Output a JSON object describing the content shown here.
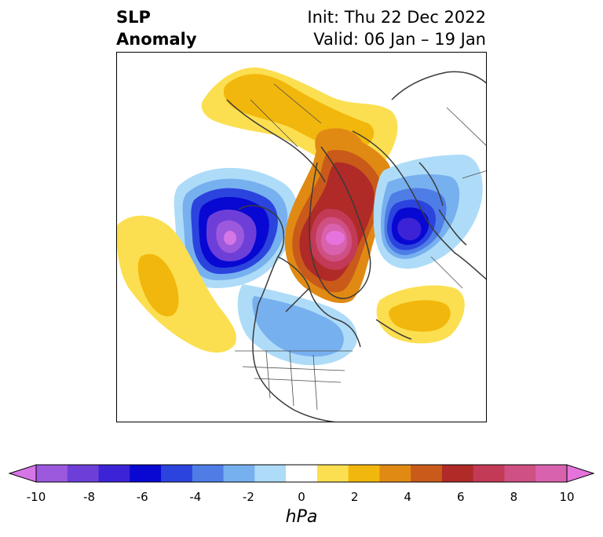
{
  "header": {
    "title_line1": "SLP",
    "title_line2": "Anomaly",
    "init": "Init: Thu 22 Dec 2022",
    "valid": "Valid: 06 Jan – 19 Jan"
  },
  "colorbar": {
    "units": "hPa",
    "ticks": [
      "-10",
      "-8",
      "-6",
      "-4",
      "-2",
      "0",
      "2",
      "4",
      "6",
      "8",
      "10"
    ],
    "colors": [
      "#d676e6",
      "#9c59de",
      "#6e3fd8",
      "#3c23d6",
      "#0808d2",
      "#2b44de",
      "#4e7de6",
      "#77b0ef",
      "#aedcf8",
      "#ffffff",
      "#fbdf50",
      "#f2b70c",
      "#e08a14",
      "#c95a1a",
      "#b02a28",
      "#c23a56",
      "#cf5083",
      "#d962ae",
      "#e673dc"
    ]
  },
  "map": {
    "projection": "north polar stereographic",
    "features": [
      "coastlines",
      "country borders",
      "US state borders"
    ],
    "anomaly_centers": [
      {
        "name": "north-pacific-low",
        "sign": "negative",
        "peak_hpa": -9
      },
      {
        "name": "greenland-arctic-high",
        "sign": "positive",
        "peak_hpa": 10
      },
      {
        "name": "european-low",
        "sign": "negative",
        "peak_hpa": -7
      },
      {
        "name": "subtropical-pacific-high",
        "sign": "positive",
        "peak_hpa": 3
      },
      {
        "name": "atlantic-high",
        "sign": "positive",
        "peak_hpa": 3
      },
      {
        "name": "siberian-high",
        "sign": "positive",
        "peak_hpa": 2
      },
      {
        "name": "north-america-low",
        "sign": "negative",
        "peak_hpa": -3
      }
    ]
  }
}
